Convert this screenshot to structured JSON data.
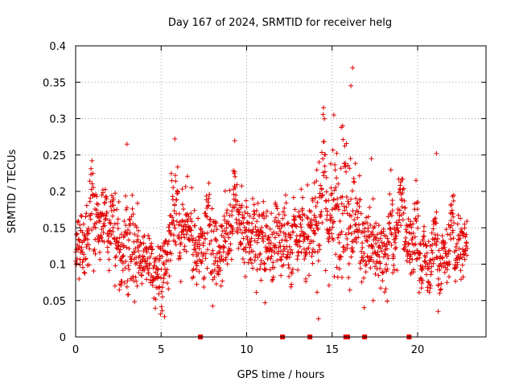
{
  "chart_data": {
    "type": "scatter",
    "title": "Day 167 of 2024, SRMTID for receiver helg",
    "xlabel": "GPS time / hours",
    "ylabel": "SRMTID / TECUs",
    "xlim": [
      0,
      24
    ],
    "ylim": [
      0,
      0.4
    ],
    "x_ticks": [
      0,
      5,
      10,
      15,
      20
    ],
    "x_tick_labels": [
      "0",
      "5",
      "10",
      "15",
      "20"
    ],
    "y_ticks": [
      0,
      0.05,
      0.1,
      0.15,
      0.2,
      0.25,
      0.3,
      0.35,
      0.4
    ],
    "y_tick_labels": [
      "0",
      "0.05",
      "0.1",
      "0.15",
      "0.2",
      "0.25",
      "0.3",
      "0.35",
      "0.4"
    ],
    "grid": true,
    "marker": "+",
    "series_color": "#e00000",
    "x_range_of_points": [
      0,
      22.9
    ],
    "zero_value_times": [
      7.3,
      12.1,
      13.7,
      15.8,
      15.9,
      16.9,
      19.5
    ],
    "envelope": {
      "x": [
        0,
        0.5,
        1,
        1.5,
        2,
        2.5,
        3,
        3.5,
        4,
        4.5,
        5,
        5.5,
        6,
        6.5,
        7,
        7.5,
        8,
        8.5,
        9,
        9.5,
        10,
        10.5,
        11,
        11.5,
        12,
        12.5,
        13,
        13.5,
        14,
        14.5,
        15,
        15.5,
        16,
        16.5,
        17,
        17.5,
        18,
        18.5,
        19,
        19.5,
        20,
        20.5,
        21,
        21.5,
        22,
        22.5,
        22.9
      ],
      "center": [
        0.12,
        0.13,
        0.15,
        0.16,
        0.14,
        0.1,
        0.12,
        0.12,
        0.11,
        0.1,
        0.08,
        0.13,
        0.14,
        0.12,
        0.12,
        0.13,
        0.12,
        0.12,
        0.15,
        0.16,
        0.13,
        0.14,
        0.13,
        0.11,
        0.12,
        0.12,
        0.12,
        0.13,
        0.15,
        0.17,
        0.16,
        0.19,
        0.18,
        0.17,
        0.14,
        0.12,
        0.1,
        0.11,
        0.14,
        0.14,
        0.11,
        0.08,
        0.09,
        0.11,
        0.11,
        0.12,
        0.13
      ],
      "spread": [
        0.03,
        0.04,
        0.05,
        0.05,
        0.04,
        0.04,
        0.06,
        0.05,
        0.04,
        0.04,
        0.04,
        0.05,
        0.05,
        0.04,
        0.04,
        0.05,
        0.05,
        0.05,
        0.05,
        0.05,
        0.05,
        0.05,
        0.05,
        0.05,
        0.05,
        0.05,
        0.04,
        0.05,
        0.06,
        0.07,
        0.08,
        0.09,
        0.09,
        0.07,
        0.06,
        0.04,
        0.04,
        0.04,
        0.05,
        0.05,
        0.05,
        0.04,
        0.04,
        0.04,
        0.04,
        0.04,
        0.04
      ]
    },
    "notable_points": [
      {
        "x": 3.0,
        "y": 0.265
      },
      {
        "x": 5.8,
        "y": 0.272
      },
      {
        "x": 9.3,
        "y": 0.227
      },
      {
        "x": 14.5,
        "y": 0.315
      },
      {
        "x": 15.1,
        "y": 0.305
      },
      {
        "x": 16.2,
        "y": 0.37
      },
      {
        "x": 16.1,
        "y": 0.345
      },
      {
        "x": 17.3,
        "y": 0.245
      },
      {
        "x": 21.1,
        "y": 0.252
      },
      {
        "x": 14.2,
        "y": 0.025
      },
      {
        "x": 5.2,
        "y": 0.028
      },
      {
        "x": 21.2,
        "y": 0.035
      },
      {
        "x": 17.4,
        "y": 0.05
      },
      {
        "x": 2.3,
        "y": 0.07
      }
    ],
    "n_points": 1700
  }
}
